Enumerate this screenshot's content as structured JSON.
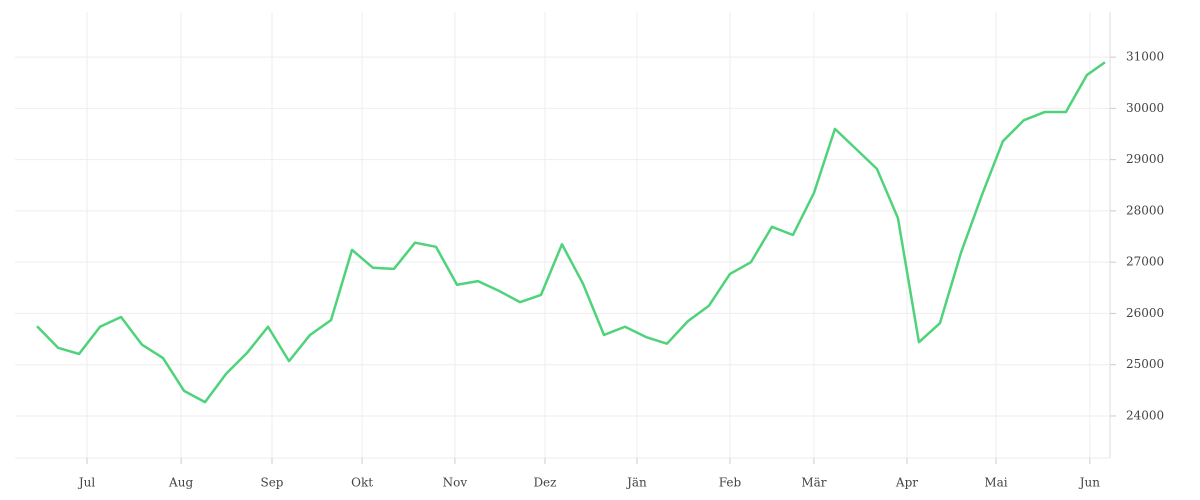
{
  "chart_data": {
    "type": "line",
    "x": [
      0,
      1,
      2,
      3,
      4,
      5,
      6,
      7,
      8,
      9,
      10,
      11,
      12,
      13,
      14,
      15,
      16,
      17,
      18,
      19,
      20,
      21,
      22,
      23,
      24,
      25,
      26,
      27,
      28,
      29,
      30,
      31,
      32,
      33,
      34,
      35,
      36,
      37,
      38,
      39,
      40,
      41,
      42,
      43,
      44,
      45,
      46,
      47,
      48,
      49,
      50,
      50.86
    ],
    "series": [
      {
        "color": "#4fd37a",
        "values": [
          25750,
          25330,
          25210,
          25740,
          25930,
          25390,
          25130,
          24490,
          24270,
          24820,
          25230,
          25740,
          25070,
          25580,
          25870,
          27240,
          26890,
          26870,
          27380,
          27300,
          26560,
          26630,
          26440,
          26220,
          26360,
          27350,
          26580,
          25580,
          25740,
          25540,
          25410,
          25850,
          26150,
          26770,
          27000,
          27690,
          27530,
          28350,
          29600,
          29210,
          28820,
          27860,
          25440,
          25810,
          27180,
          28310,
          29360,
          29770,
          29930,
          29930,
          30650,
          30900
        ]
      }
    ],
    "xlim": [
      -1.05,
      51.1
    ],
    "xticks": [
      {
        "value": 2.38,
        "label": "Jul"
      },
      {
        "value": 6.86,
        "label": "Aug"
      },
      {
        "value": 11.19,
        "label": "Sep"
      },
      {
        "value": 15.48,
        "label": "Okt"
      },
      {
        "value": 19.9,
        "label": "Nov"
      },
      {
        "value": 24.19,
        "label": "Dez"
      },
      {
        "value": 28.57,
        "label": "Jän"
      },
      {
        "value": 33,
        "label": "Feb"
      },
      {
        "value": 37,
        "label": "Mär"
      },
      {
        "value": 41.43,
        "label": "Apr"
      },
      {
        "value": 45.67,
        "label": "Mai"
      },
      {
        "value": 50.14,
        "label": "Jun"
      }
    ],
    "ylim": [
      23180,
      31880
    ],
    "yticks": [
      24000,
      25000,
      26000,
      27000,
      28000,
      29000,
      30000,
      31000
    ],
    "grid": true
  }
}
